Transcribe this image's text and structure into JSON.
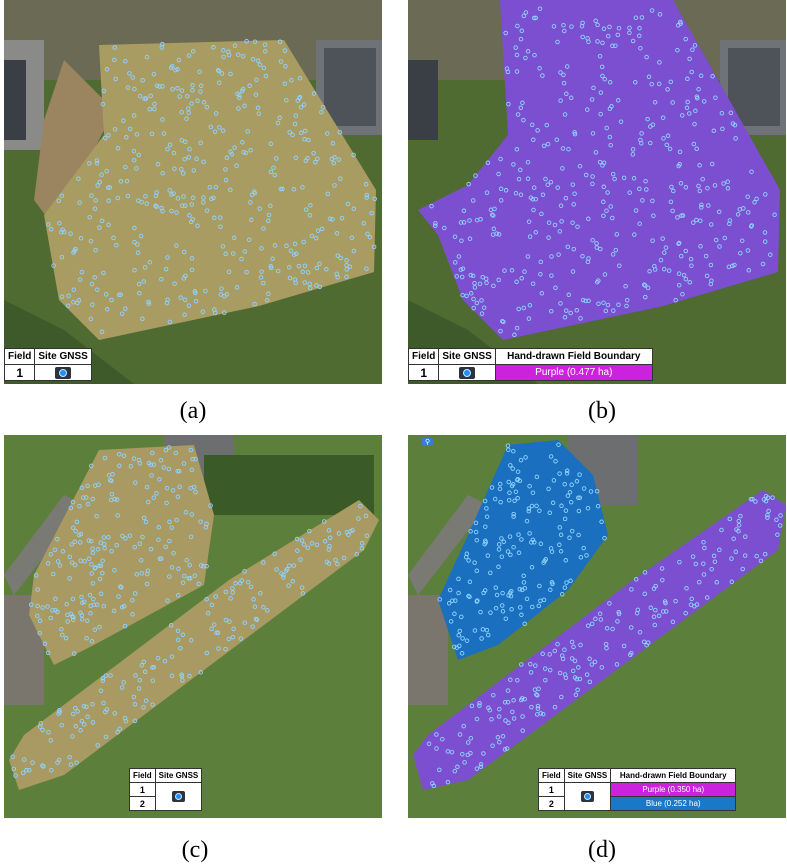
{
  "panels": [
    {
      "id": "a",
      "caption": "(a)"
    },
    {
      "id": "b",
      "caption": "(b)"
    },
    {
      "id": "c",
      "caption": "(c)"
    },
    {
      "id": "d",
      "caption": "(d)"
    }
  ],
  "legend_a": {
    "col_field": "Field",
    "col_gnss": "Site GNSS",
    "rows": [
      {
        "field": "1"
      }
    ]
  },
  "legend_b": {
    "col_field": "Field",
    "col_gnss": "Site GNSS",
    "col_boundary": "Hand-drawn Field Boundary",
    "rows": [
      {
        "field": "1",
        "boundary": "Purple (0.477 ha)"
      }
    ]
  },
  "legend_c": {
    "col_field": "Field",
    "col_gnss": "Site GNSS",
    "rows": [
      {
        "field": "1"
      },
      {
        "field": "2"
      }
    ]
  },
  "legend_d": {
    "col_field": "Field",
    "col_gnss": "Site GNSS",
    "col_boundary": "Hand-drawn Field Boundary",
    "rows": [
      {
        "field": "1",
        "boundary": "Purple (0.350 ha)"
      },
      {
        "field": "2",
        "boundary": "Blue (0.252 ha)"
      }
    ]
  },
  "colors": {
    "purple": "#7c4fd0",
    "blue": "#1a6fbf",
    "gnss_point": "#8fd3ff",
    "grass": "#5d7a3a",
    "field": "#a89a62"
  },
  "icons": [
    "gnss-point-icon",
    "search-icon"
  ]
}
